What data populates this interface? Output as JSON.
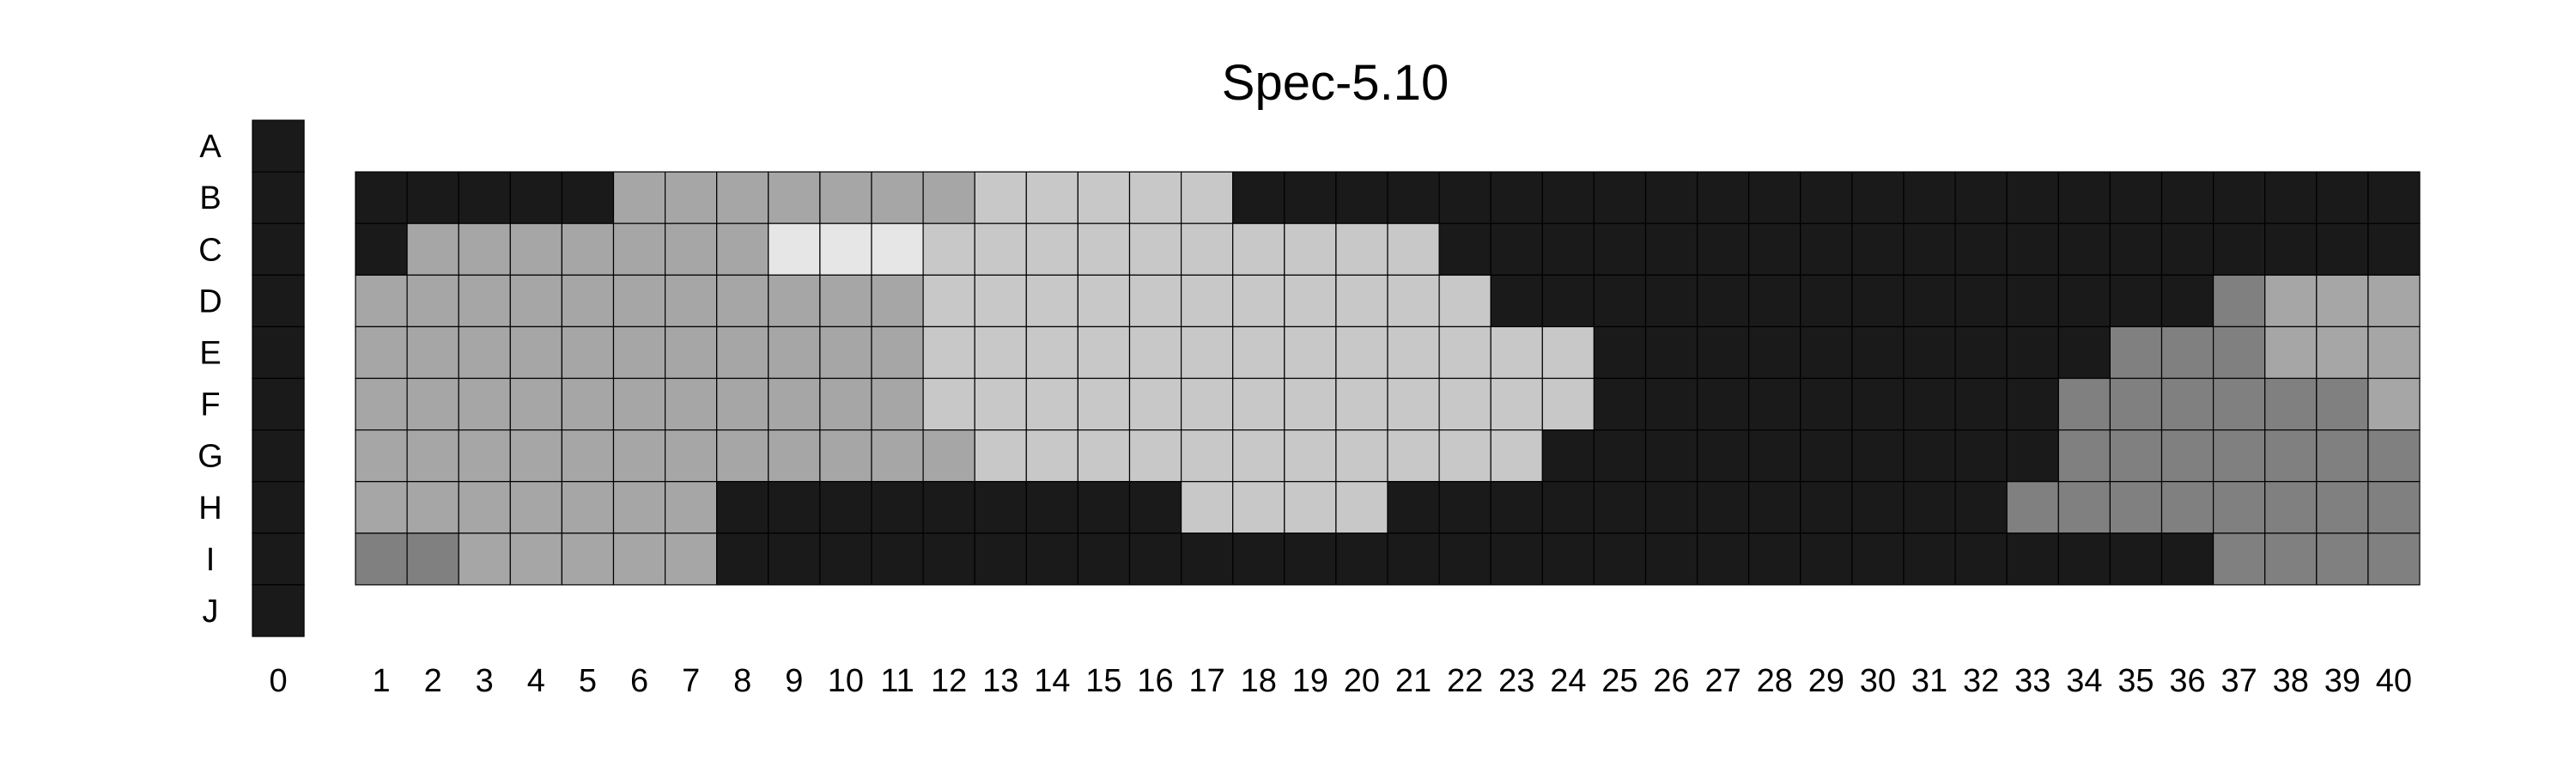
{
  "chart_data": {
    "type": "heatmap",
    "title": "Spec-5.10",
    "rows": [
      "A",
      "B",
      "C",
      "D",
      "E",
      "F",
      "G",
      "H",
      "I",
      "J"
    ],
    "column_zero": {
      "label": "0",
      "value_code": 0,
      "rows": [
        "A",
        "B",
        "C",
        "D",
        "E",
        "F",
        "G",
        "H",
        "I",
        "J"
      ]
    },
    "main_grid": {
      "columns": [
        "1",
        "2",
        "3",
        "4",
        "5",
        "6",
        "7",
        "8",
        "9",
        "10",
        "11",
        "12",
        "13",
        "14",
        "15",
        "16",
        "17",
        "18",
        "19",
        "20",
        "21",
        "22",
        "23",
        "24",
        "25",
        "26",
        "27",
        "28",
        "29",
        "30",
        "31",
        "32",
        "33",
        "34",
        "35",
        "36",
        "37",
        "38",
        "39",
        "40"
      ],
      "rows": [
        "B",
        "C",
        "D",
        "E",
        "F",
        "G",
        "H",
        "I"
      ],
      "values": [
        "0000033333334444400000000000000000000000",
        "0333333355544444444440000000000000000000",
        "3333333333344444444444000000000000002333",
        "3333333333344444444444440000000000222333",
        "3333333333344444444444440000000002222223",
        "3333333333334444444444400000000002222222",
        "3333333000000000444400000000000022222222",
        "2233333000000000000000000000000000002222"
      ]
    },
    "value_colors": {
      "0": "#1a1a1a",
      "2": "#808080",
      "3": "#a6a6a6",
      "4": "#c8c8c8",
      "5": "#e6e6e6"
    },
    "grid": true
  }
}
